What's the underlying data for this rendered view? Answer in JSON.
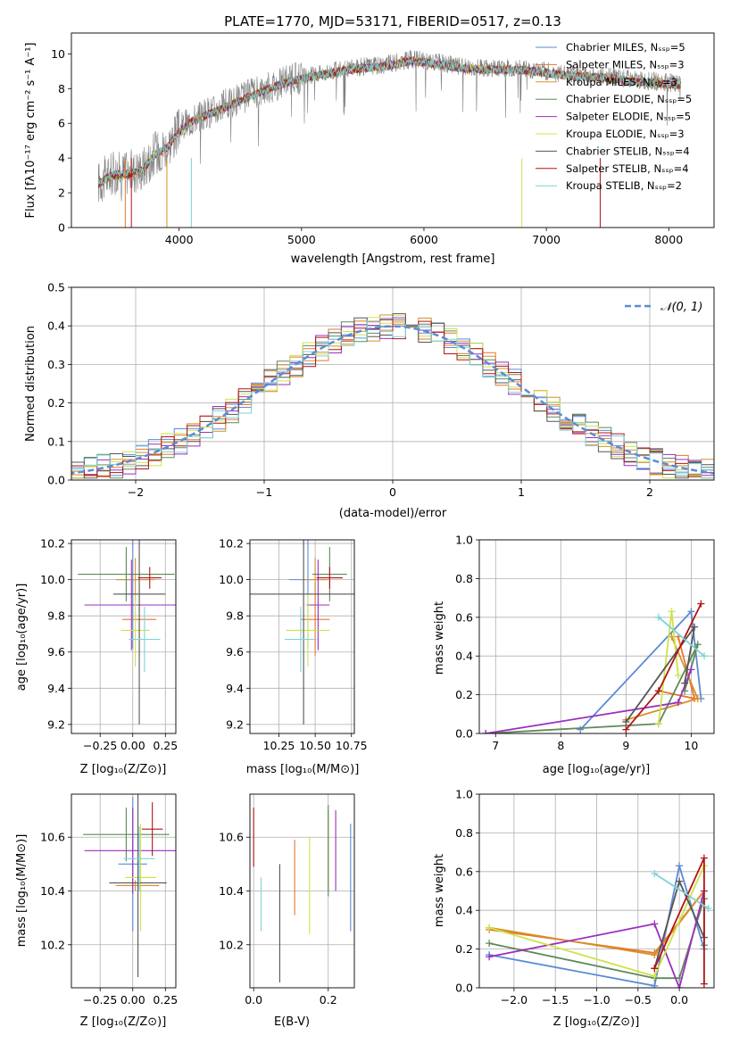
{
  "colors": {
    "chabrier_miles": "#5b8bd6",
    "salpeter_miles": "#e5772d",
    "kroupa_miles": "#d8902a",
    "chabrier_elodie": "#5f8a5a",
    "salpeter_elodie": "#9b2fbf",
    "kroupa_elodie": "#cde34a",
    "chabrier_stelib": "#555555",
    "salpeter_stelib": "#b01515",
    "kroupa_stelib": "#7fd2d6",
    "gaussian": "#5b8bd6",
    "grid": "#b0b0b0"
  },
  "chart_data": [
    {
      "id": "spectrum",
      "type": "line",
      "title": "PLATE=1770, MJD=53171, FIBERID=0517, z=0.13",
      "xlabel": "wavelength [Angstrom, rest frame]",
      "ylabel": "Flux [fλ10⁻¹⁷ erg cm⁻² s⁻¹ A⁻¹]",
      "xlim": [
        3120,
        8370
      ],
      "ylim": [
        0,
        11.2
      ],
      "xticks": [
        "4000",
        "5000",
        "6000",
        "7000",
        "8000"
      ],
      "yticks": [
        "0",
        "2",
        "4",
        "6",
        "8",
        "10"
      ],
      "grid": false,
      "legend_position": "top-right",
      "legend": [
        "Chabrier MILES, N_SSP=5",
        "Salpeter MILES, N_SSP=3",
        "Kroupa MILES, N_SSP=3",
        "Chabrier ELODIE, N_SSP=5",
        "Salpeter ELODIE, N_SSP=5",
        "Kroupa ELODIE, N_SSP=3",
        "Chabrier STELIB, N_SSP=4",
        "Salpeter STELIB, N_SSP=4",
        "Kroupa STELIB, N_SSP=2"
      ],
      "continuum": {
        "x": [
          3340,
          3450,
          3600,
          3700,
          3800,
          3900,
          4000,
          4100,
          4300,
          4500,
          4700,
          4900,
          5100,
          5400,
          5700,
          5900,
          6100,
          6300,
          6500,
          6700,
          6900,
          7100,
          7300,
          7500,
          7700,
          7900,
          8100
        ],
        "y": [
          2.6,
          3.1,
          3.2,
          3.4,
          4.3,
          4.7,
          5.6,
          6.2,
          6.8,
          7.4,
          8.0,
          8.5,
          8.8,
          9.2,
          9.4,
          9.7,
          9.5,
          9.3,
          9.2,
          9.2,
          9.1,
          8.9,
          8.8,
          8.7,
          8.5,
          8.4,
          8.3
        ]
      }
    },
    {
      "id": "residuals",
      "type": "bar",
      "xlabel": "(data-model)/error",
      "ylabel": "Normed distribution",
      "xlim": [
        -2.5,
        2.5
      ],
      "ylim": [
        0,
        0.5
      ],
      "xticks": [
        "−2",
        "−1",
        "0",
        "1",
        "2"
      ],
      "yticks": [
        "0.0",
        "0.1",
        "0.2",
        "0.3",
        "0.4",
        "0.5"
      ],
      "grid": true,
      "legend_position": "top-right",
      "legend": [
        "𝒩(0, 1)"
      ]
    },
    {
      "id": "age_vs_Z",
      "type": "scatter",
      "xlabel": "Z [log₁₀(Z/Z⊙)]",
      "ylabel": "age  [log₁₀(age/yr)]",
      "xlim": [
        -0.47,
        0.33
      ],
      "ylim": [
        9.15,
        10.22
      ],
      "xticks": [
        "−0.25",
        "0.00",
        "0.25"
      ],
      "yticks": [
        "9.2",
        "9.4",
        "9.6",
        "9.8",
        "10.0",
        "10.2"
      ],
      "points": [
        {
          "x": 0.0,
          "xerr": 0.12,
          "y": 10.0,
          "yerr": 0.38
        },
        {
          "x": 0.05,
          "xerr": 0.13,
          "y": 9.78,
          "yerr": 0.2
        },
        {
          "x": 0.02,
          "xerr": 0.15,
          "y": 10.0,
          "yerr": 0.12
        },
        {
          "x": -0.05,
          "xerr": 0.37,
          "y": 10.03,
          "yerr": 0.15
        },
        {
          "x": -0.01,
          "xerr": 0.36,
          "y": 9.86,
          "yerr": 0.25
        },
        {
          "x": 0.02,
          "xerr": 0.11,
          "y": 9.72,
          "yerr": 0.2
        },
        {
          "x": 0.05,
          "xerr": 0.2,
          "y": 9.92,
          "yerr": 0.72
        },
        {
          "x": 0.13,
          "xerr": 0.09,
          "y": 10.01,
          "yerr": 0.06
        },
        {
          "x": 0.09,
          "xerr": 0.12,
          "y": 9.67,
          "yerr": 0.18
        }
      ]
    },
    {
      "id": "age_vs_mass",
      "type": "scatter",
      "xlabel": "mass [log₁₀(M/M⊙)]",
      "xlim": [
        10.05,
        10.77
      ],
      "ylim": [
        9.15,
        10.22
      ],
      "xticks": [
        "10.25",
        "10.50",
        "10.75"
      ],
      "yticks": [
        "9.2",
        "9.4",
        "9.6",
        "9.8",
        "10.0",
        "10.2"
      ],
      "points": [
        {
          "x": 10.45,
          "xerr": 0.13,
          "y": 10.0,
          "yerr": 0.38
        },
        {
          "x": 10.5,
          "xerr": 0.1,
          "y": 9.78,
          "yerr": 0.2
        },
        {
          "x": 10.5,
          "xerr": 0.09,
          "y": 10.0,
          "yerr": 0.12
        },
        {
          "x": 10.6,
          "xerr": 0.12,
          "y": 10.03,
          "yerr": 0.15
        },
        {
          "x": 10.52,
          "xerr": 0.08,
          "y": 9.86,
          "yerr": 0.25
        },
        {
          "x": 10.45,
          "xerr": 0.15,
          "y": 9.72,
          "yerr": 0.2
        },
        {
          "x": 10.42,
          "xerr": 0.38,
          "y": 9.92,
          "yerr": 0.72
        },
        {
          "x": 10.6,
          "xerr": 0.09,
          "y": 10.01,
          "yerr": 0.06
        },
        {
          "x": 10.4,
          "xerr": 0.11,
          "y": 9.67,
          "yerr": 0.18
        }
      ]
    },
    {
      "id": "weight_vs_age",
      "type": "line",
      "xlabel": "age  [log₁₀(age/yr)]",
      "ylabel": "mass weight",
      "xlim": [
        6.75,
        10.35
      ],
      "ylim": [
        0,
        1
      ],
      "xticks": [
        "7",
        "8",
        "9",
        "10"
      ],
      "yticks": [
        "0.0",
        "0.2",
        "0.4",
        "0.6",
        "0.8",
        "1.0"
      ],
      "grid": true
    },
    {
      "id": "mass_vs_Z",
      "type": "scatter",
      "xlabel": "Z [log₁₀(Z/Z⊙)]",
      "ylabel": "mass [log₁₀(M/M⊙)]",
      "xlim": [
        -0.47,
        0.33
      ],
      "ylim": [
        10.04,
        10.76
      ],
      "xticks": [
        "−0.25",
        "0.00",
        "0.25"
      ],
      "yticks": [
        "10.2",
        "10.4",
        "10.6"
      ]
    },
    {
      "id": "mass_vs_ebv",
      "type": "scatter",
      "xlabel": "E(B-V)",
      "xlim": [
        -0.01,
        0.27
      ],
      "ylim": [
        10.04,
        10.76
      ],
      "xticks": [
        "0.0",
        "0.2"
      ],
      "yticks": [
        "10.2",
        "10.4",
        "10.6"
      ]
    },
    {
      "id": "weight_vs_Z",
      "type": "line",
      "xlabel": "Z [log₁₀(Z/Z⊙)]",
      "ylabel": "mass weight",
      "xlim": [
        -2.42,
        0.42
      ],
      "ylim": [
        0,
        1
      ],
      "xticks": [
        "−2.0",
        "−1.5",
        "−1.0",
        "−0.5",
        "0.0"
      ],
      "yticks": [
        "0.0",
        "0.2",
        "0.4",
        "0.6",
        "0.8",
        "1.0"
      ],
      "grid": true
    }
  ]
}
